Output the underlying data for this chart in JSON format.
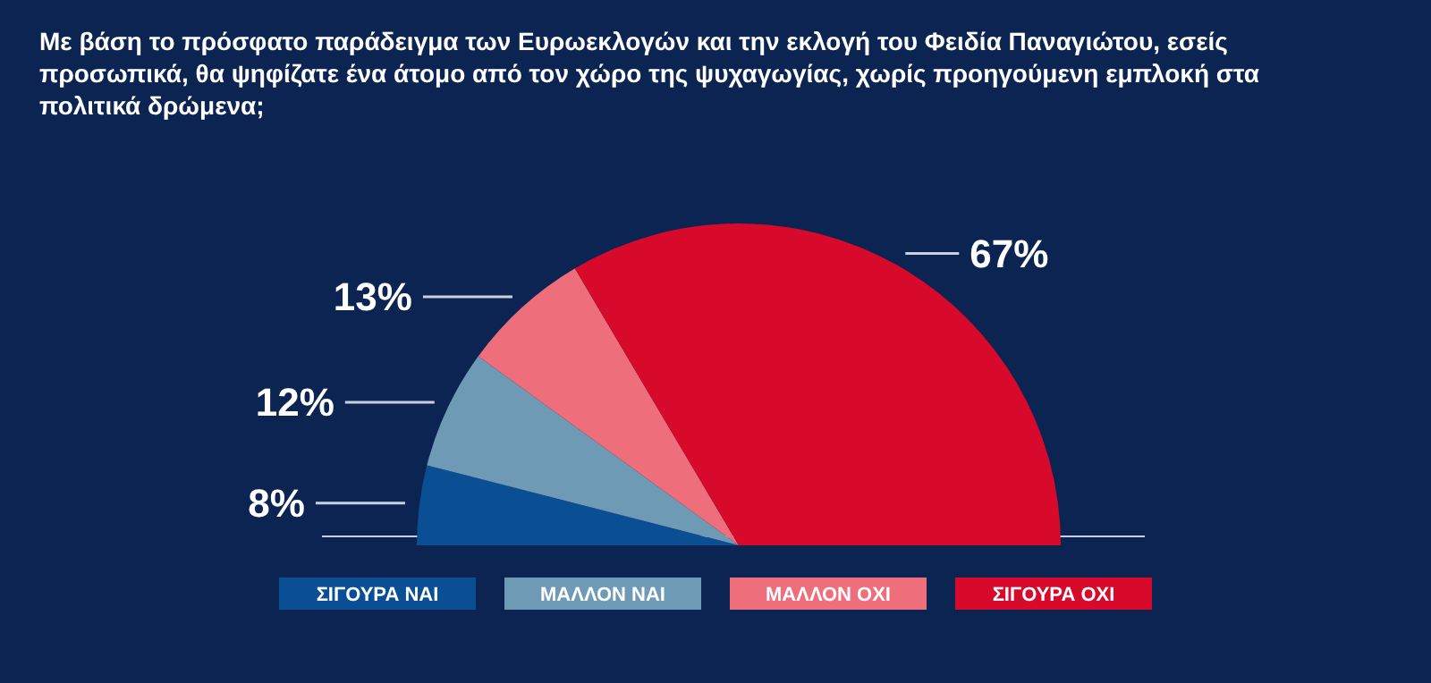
{
  "chart_data": {
    "type": "pie",
    "title": "Με βάση το πρόσφατο παράδειγμα των Ευρωεκλογών και την εκλογή του Φειδία Παναγιώτου, εσείς προσωπικά, θα ψηφίζατε ένα άτομο από τον χώρο της ψυχαγωγίας, χωρίς προηγούμενη εμπλοκή στα πολιτικά δρώμενα;",
    "categories": [
      "ΣΙΓΟΥΡΑ ΝΑΙ",
      "ΜΑΛΛΟΝ ΝΑΙ",
      "ΜΑΛΛΟΝ ΟΧΙ",
      "ΣΙΓΟΥΡΑ ΟΧΙ"
    ],
    "values": [
      8,
      12,
      13,
      67
    ],
    "colors": [
      "#0a4f94",
      "#6f9ab5",
      "#ee6e7b",
      "#d80a2c"
    ],
    "value_labels": [
      "8%",
      "12%",
      "13%",
      "67%"
    ],
    "legend": "bottom"
  }
}
